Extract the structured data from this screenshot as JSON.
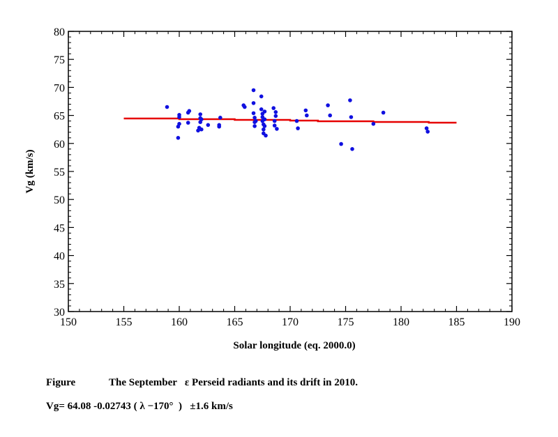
{
  "chart_data": {
    "type": "scatter",
    "xlabel": "Solar longitude (eq. 2000.0)",
    "ylabel": "Vg (km/s)",
    "xlim": [
      150,
      190
    ],
    "ylim": [
      30,
      80
    ],
    "xticks": [
      150,
      155,
      160,
      165,
      170,
      175,
      180,
      185,
      190
    ],
    "yticks": [
      30,
      35,
      40,
      45,
      50,
      55,
      60,
      65,
      70,
      75,
      80
    ],
    "grid": false,
    "points": {
      "color": "#1010e0",
      "x": [
        158.9,
        159.9,
        159.9,
        160.0,
        160.0,
        160.0,
        160.8,
        160.8,
        160.9,
        161.7,
        161.8,
        161.9,
        161.9,
        161.9,
        162.0,
        162.0,
        162.6,
        163.6,
        163.6,
        163.7,
        165.8,
        165.9,
        166.7,
        166.7,
        166.7,
        166.8,
        166.8,
        166.8,
        166.9,
        167.4,
        167.4,
        167.5,
        167.5,
        167.5,
        167.6,
        167.6,
        167.6,
        167.7,
        167.7,
        167.7,
        167.8,
        168.5,
        168.6,
        168.6,
        168.7,
        168.7,
        168.8,
        170.6,
        170.7,
        171.4,
        171.5,
        173.4,
        173.6,
        174.6,
        175.4,
        175.5,
        175.6,
        177.5,
        178.4,
        182.3,
        182.4
      ],
      "y": [
        66.5,
        61.0,
        63.0,
        63.5,
        64.7,
        65.1,
        63.7,
        65.5,
        65.8,
        62.3,
        62.8,
        63.8,
        64.5,
        65.2,
        64.3,
        62.5,
        63.3,
        63.0,
        63.3,
        64.6,
        66.8,
        66.5,
        69.5,
        67.2,
        65.4,
        64.6,
        63.8,
        63.1,
        64.0,
        68.4,
        66.1,
        65.3,
        64.7,
        64.0,
        63.4,
        62.5,
        61.8,
        65.7,
        64.3,
        63.1,
        61.4,
        66.3,
        64.0,
        63.2,
        65.6,
        64.9,
        62.6,
        64.0,
        62.7,
        65.9,
        65.0,
        66.8,
        65.0,
        59.9,
        67.7,
        64.7,
        59.0,
        63.5,
        65.5,
        62.7,
        62.1
      ]
    },
    "fit_line": {
      "color": "#e60000",
      "x_range": [
        155,
        185
      ],
      "intercept": 64.08,
      "slope": -0.02743,
      "x0": 170
    }
  },
  "caption": {
    "label": "Figure",
    "title": "The September   ε Perseid radiants and its drift in 2010.",
    "formula": "Vg= 64.08 -0.02743 ( λ −170°  )   ±1.6 km/s"
  }
}
